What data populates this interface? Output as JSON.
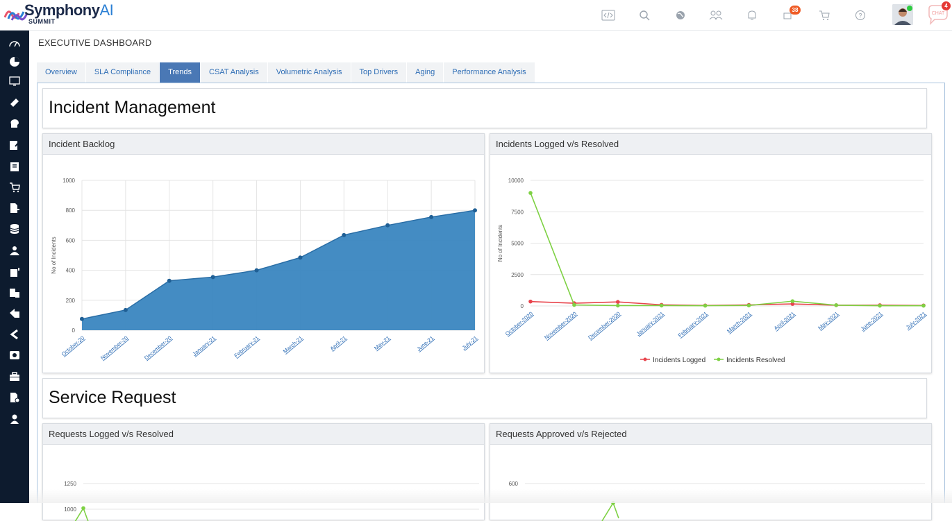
{
  "brand": {
    "name": "Symphony",
    "name_ai": "AI",
    "sub": "SUMMIT"
  },
  "header": {
    "notification_count": "38",
    "chat_count": "4",
    "chat_label": "CHAT"
  },
  "page": {
    "title": "EXECUTIVE DASHBOARD"
  },
  "tabs": [
    {
      "label": "Overview"
    },
    {
      "label": "SLA Compliance"
    },
    {
      "label": "Trends"
    },
    {
      "label": "CSAT Analysis"
    },
    {
      "label": "Volumetric Analysis"
    },
    {
      "label": "Top Drivers"
    },
    {
      "label": "Aging"
    },
    {
      "label": "Performance Analysis"
    }
  ],
  "active_tab": "Trends",
  "sections": {
    "incident": "Incident Management",
    "service": "Service Request"
  },
  "panels": {
    "backlog": "Incident Backlog",
    "inc_logged": "Incidents Logged v/s Resolved",
    "req_logged": "Requests Logged v/s Resolved",
    "req_approved": "Requests Approved v/s Rejected"
  },
  "chart_data": [
    {
      "type": "area",
      "title": "Incident Backlog",
      "ylabel": "No of Incidents",
      "ylim": [
        0,
        1000
      ],
      "yticks": [
        0,
        200,
        400,
        600,
        800,
        1000
      ],
      "categories": [
        "October-20",
        "November-20",
        "December-20",
        "January-21",
        "February-21",
        "March-21",
        "April-21",
        "May-21",
        "June-21",
        "July-21"
      ],
      "values": [
        75,
        135,
        330,
        355,
        400,
        485,
        635,
        700,
        755,
        800
      ],
      "color": "#3a86c0",
      "grid": true
    },
    {
      "type": "line",
      "title": "Incidents Logged v/s Resolved",
      "ylabel": "No of Incidents",
      "ylim": [
        0,
        10000
      ],
      "yticks": [
        0,
        2500,
        5000,
        7500,
        10000
      ],
      "categories": [
        "October-2020",
        "November-2020",
        "December-2020",
        "January-2021",
        "February-2021",
        "March-2021",
        "April-2021",
        "May-2021",
        "June-2021",
        "July-2021"
      ],
      "series": [
        {
          "name": "Incidents Logged",
          "color": "#e8444c",
          "values": [
            350,
            220,
            320,
            90,
            40,
            80,
            160,
            60,
            60,
            40
          ]
        },
        {
          "name": "Incidents Resolved",
          "color": "#7ed144",
          "values": [
            9000,
            80,
            30,
            30,
            20,
            40,
            380,
            60,
            20,
            20
          ]
        }
      ],
      "legend": "bottom",
      "grid": true
    },
    {
      "type": "line",
      "title": "Requests Logged v/s Resolved",
      "yticks": [
        1000,
        1250
      ],
      "series": [
        {
          "color": "#7ed144",
          "values": [
            1010
          ]
        }
      ]
    },
    {
      "type": "line",
      "title": "Requests Approved v/s Rejected",
      "yticks": [
        600
      ],
      "series": [
        {
          "color": "#7ed144",
          "values": [
            560
          ]
        }
      ]
    }
  ]
}
